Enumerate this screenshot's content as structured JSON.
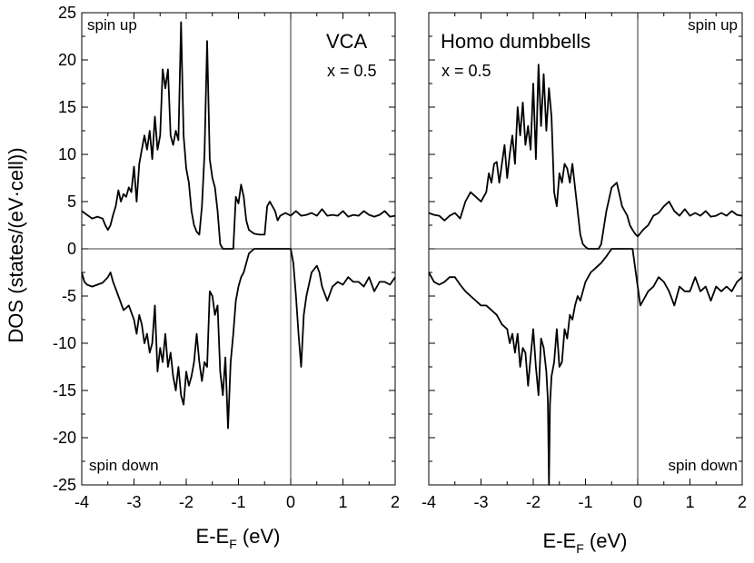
{
  "chart_data": [
    {
      "type": "line",
      "title": "VCA",
      "annotation": "x = 0.5",
      "spin_up_label": "spin up",
      "spin_down_label": "spin down",
      "xlabel": "E-E_F (eV)",
      "xlabel_main": "E-E",
      "xlabel_sub": "F",
      "xlabel_unit": " (eV)",
      "ylabel": "DOS (states/(eV·cell))",
      "xlim": [
        -4,
        2
      ],
      "ylim": [
        -25,
        25
      ],
      "xticks": [
        "-4",
        "-3",
        "-2",
        "-1",
        "0",
        "1",
        "2"
      ],
      "yticks": [
        "25",
        "20",
        "15",
        "10",
        "5",
        "0",
        "-5",
        "-10",
        "-15",
        "-20",
        "-25"
      ],
      "series": [
        {
          "x": [
            -4.0,
            -3.9,
            -3.8,
            -3.7,
            -3.6,
            -3.55,
            -3.5,
            -3.45,
            -3.4,
            -3.35,
            -3.3,
            -3.25,
            -3.2,
            -3.15,
            -3.1,
            -3.05,
            -3.0,
            -2.95,
            -2.9,
            -2.85,
            -2.8,
            -2.75,
            -2.7,
            -2.65,
            -2.6,
            -2.55,
            -2.5,
            -2.45,
            -2.4,
            -2.35,
            -2.3,
            -2.25,
            -2.2,
            -2.15,
            -2.1,
            -2.05,
            -2.0,
            -1.95,
            -1.9,
            -1.85,
            -1.8,
            -1.75,
            -1.7,
            -1.65,
            -1.6,
            -1.55,
            -1.5,
            -1.45,
            -1.4,
            -1.35,
            -1.3,
            -1.25,
            -1.2,
            -1.15,
            -1.1,
            -1.05,
            -1.0,
            -0.95,
            -0.9,
            -0.85,
            -0.8,
            -0.7,
            -0.6,
            -0.55,
            -0.5,
            -0.45,
            -0.4,
            -0.35,
            -0.3,
            -0.25,
            -0.2,
            -0.1,
            0.0,
            0.1,
            0.2,
            0.3,
            0.4,
            0.5,
            0.6,
            0.7,
            0.8,
            0.9,
            1.0,
            1.1,
            1.2,
            1.3,
            1.4,
            1.5,
            1.6,
            1.7,
            1.8,
            1.9,
            2.0
          ],
          "y": [
            4.0,
            3.6,
            3.2,
            3.4,
            3.2,
            2.5,
            2.0,
            2.5,
            3.6,
            4.5,
            6.2,
            5.0,
            5.8,
            5.5,
            6.5,
            6.0,
            8.7,
            5.0,
            9.0,
            10.5,
            12.0,
            10.5,
            12.5,
            9.5,
            14.0,
            10.5,
            12.0,
            19.0,
            17.0,
            19.0,
            12.0,
            11.0,
            12.5,
            11.5,
            24.0,
            12.0,
            8.5,
            7.0,
            4.0,
            2.5,
            1.8,
            1.5,
            4.5,
            10.0,
            22.0,
            9.5,
            7.5,
            6.5,
            4.0,
            0.5,
            0.0,
            0.0,
            0.0,
            0.0,
            0.0,
            5.5,
            4.8,
            6.8,
            5.5,
            3.0,
            2.0,
            1.6,
            1.5,
            1.5,
            1.5,
            4.5,
            5.0,
            4.5,
            4.0,
            3.0,
            3.5,
            3.8,
            3.5,
            4.0,
            3.5,
            3.6,
            3.8,
            3.5,
            4.2,
            3.5,
            3.6,
            3.5,
            4.0,
            3.4,
            3.6,
            3.5,
            4.0,
            3.6,
            3.4,
            3.6,
            4.0,
            3.4,
            3.5
          ]
        },
        {
          "x": [
            -4.0,
            -3.95,
            -3.9,
            -3.8,
            -3.7,
            -3.6,
            -3.5,
            -3.45,
            -3.4,
            -3.3,
            -3.2,
            -3.1,
            -3.0,
            -2.95,
            -2.9,
            -2.85,
            -2.8,
            -2.75,
            -2.7,
            -2.65,
            -2.6,
            -2.55,
            -2.5,
            -2.45,
            -2.4,
            -2.35,
            -2.3,
            -2.25,
            -2.2,
            -2.15,
            -2.1,
            -2.05,
            -2.0,
            -1.95,
            -1.9,
            -1.85,
            -1.8,
            -1.75,
            -1.7,
            -1.65,
            -1.6,
            -1.55,
            -1.5,
            -1.45,
            -1.4,
            -1.35,
            -1.3,
            -1.25,
            -1.2,
            -1.15,
            -1.1,
            -1.05,
            -1.0,
            -0.95,
            -0.9,
            -0.85,
            -0.8,
            -0.7,
            -0.6,
            -0.5,
            -0.4,
            -0.3,
            -0.2,
            -0.1,
            0.0,
            0.05,
            0.1,
            0.15,
            0.2,
            0.25,
            0.3,
            0.4,
            0.5,
            0.55,
            0.6,
            0.7,
            0.8,
            0.9,
            1.0,
            1.1,
            1.2,
            1.3,
            1.4,
            1.5,
            1.6,
            1.7,
            1.8,
            1.9,
            2.0
          ],
          "y": [
            -2.5,
            -3.5,
            -3.8,
            -4.0,
            -3.8,
            -3.6,
            -3.0,
            -2.5,
            -3.5,
            -5.0,
            -6.5,
            -6.0,
            -7.5,
            -9.0,
            -7.0,
            -8.0,
            -10.0,
            -9.0,
            -11.0,
            -10.0,
            -6.0,
            -13.0,
            -10.5,
            -12.0,
            -9.0,
            -12.5,
            -11.0,
            -13.5,
            -15.0,
            -12.5,
            -15.5,
            -16.5,
            -13.0,
            -14.5,
            -13.5,
            -12.0,
            -9.0,
            -12.0,
            -14.0,
            -12.0,
            -12.5,
            -4.5,
            -5.0,
            -7.0,
            -6.0,
            -13.0,
            -15.5,
            -11.5,
            -19.0,
            -12.0,
            -9.0,
            -5.5,
            -4.0,
            -3.0,
            -2.5,
            -1.5,
            -0.5,
            0.0,
            0.0,
            0.0,
            0.0,
            0.0,
            0.0,
            0.0,
            0.0,
            -1.5,
            -5.0,
            -9.0,
            -12.5,
            -7.0,
            -5.0,
            -2.5,
            -1.8,
            -2.5,
            -4.0,
            -5.5,
            -4.0,
            -3.5,
            -3.8,
            -3.0,
            -3.5,
            -3.5,
            -4.0,
            -3.0,
            -4.5,
            -3.5,
            -3.5,
            -3.8,
            -3.0
          ]
        }
      ]
    },
    {
      "type": "line",
      "title": "Homo dumbbells",
      "annotation": "x = 0.5",
      "spin_up_label": "spin up",
      "spin_down_label": "spin down",
      "xlabel": "E-E_F (eV)",
      "xlabel_main": "E-E",
      "xlabel_sub": "F",
      "xlabel_unit": " (eV)",
      "xlim": [
        -4,
        2
      ],
      "ylim": [
        -25,
        25
      ],
      "xticks": [
        "-4",
        "-3",
        "-2",
        "-1",
        "0",
        "1",
        "2"
      ],
      "series": [
        {
          "x": [
            -4.0,
            -3.9,
            -3.8,
            -3.7,
            -3.6,
            -3.5,
            -3.4,
            -3.3,
            -3.2,
            -3.1,
            -3.0,
            -2.9,
            -2.85,
            -2.8,
            -2.75,
            -2.7,
            -2.65,
            -2.6,
            -2.55,
            -2.5,
            -2.45,
            -2.4,
            -2.35,
            -2.3,
            -2.25,
            -2.2,
            -2.15,
            -2.1,
            -2.05,
            -2.0,
            -1.95,
            -1.9,
            -1.85,
            -1.8,
            -1.75,
            -1.7,
            -1.65,
            -1.6,
            -1.55,
            -1.5,
            -1.45,
            -1.4,
            -1.35,
            -1.3,
            -1.25,
            -1.2,
            -1.15,
            -1.1,
            -1.05,
            -1.0,
            -0.95,
            -0.9,
            -0.85,
            -0.8,
            -0.75,
            -0.7,
            -0.6,
            -0.5,
            -0.4,
            -0.3,
            -0.2,
            -0.15,
            -0.1,
            -0.05,
            0.0,
            0.1,
            0.2,
            0.3,
            0.4,
            0.5,
            0.6,
            0.7,
            0.8,
            0.9,
            1.0,
            1.1,
            1.2,
            1.3,
            1.4,
            1.5,
            1.6,
            1.7,
            1.8,
            1.9,
            2.0
          ],
          "y": [
            3.8,
            3.6,
            3.5,
            3.0,
            3.5,
            3.8,
            3.2,
            5.0,
            6.0,
            5.5,
            5.0,
            6.0,
            8.0,
            7.0,
            9.0,
            9.2,
            7.0,
            9.0,
            11.0,
            7.5,
            10.0,
            12.0,
            9.0,
            15.0,
            12.0,
            15.5,
            11.0,
            13.0,
            10.5,
            17.5,
            9.5,
            19.5,
            13.0,
            18.5,
            12.5,
            17.0,
            14.0,
            6.0,
            4.5,
            8.0,
            7.0,
            9.0,
            8.5,
            7.0,
            9.0,
            6.5,
            4.0,
            1.5,
            0.5,
            0.2,
            0.0,
            0.0,
            0.0,
            0.0,
            0.0,
            0.5,
            4.0,
            6.5,
            7.0,
            4.5,
            3.5,
            2.5,
            2.0,
            1.6,
            1.3,
            2.0,
            2.5,
            3.5,
            3.8,
            4.5,
            5.0,
            4.0,
            3.5,
            4.2,
            3.5,
            3.8,
            3.5,
            4.0,
            3.4,
            3.5,
            3.8,
            3.5,
            4.0,
            3.6,
            3.5
          ]
        },
        {
          "x": [
            -4.0,
            -3.9,
            -3.8,
            -3.7,
            -3.6,
            -3.5,
            -3.4,
            -3.3,
            -3.2,
            -3.1,
            -3.0,
            -2.9,
            -2.8,
            -2.7,
            -2.6,
            -2.5,
            -2.45,
            -2.4,
            -2.35,
            -2.3,
            -2.25,
            -2.2,
            -2.15,
            -2.1,
            -2.05,
            -2.0,
            -1.95,
            -1.9,
            -1.85,
            -1.8,
            -1.75,
            -1.72,
            -1.7,
            -1.68,
            -1.65,
            -1.6,
            -1.55,
            -1.5,
            -1.45,
            -1.4,
            -1.35,
            -1.3,
            -1.25,
            -1.2,
            -1.15,
            -1.1,
            -1.05,
            -1.0,
            -0.9,
            -0.8,
            -0.7,
            -0.6,
            -0.5,
            -0.4,
            -0.3,
            -0.2,
            -0.1,
            0.0,
            0.05,
            0.1,
            0.2,
            0.3,
            0.4,
            0.5,
            0.6,
            0.7,
            0.8,
            0.9,
            1.0,
            1.1,
            1.2,
            1.3,
            1.4,
            1.5,
            1.6,
            1.7,
            1.8,
            1.9,
            2.0
          ],
          "y": [
            -2.5,
            -3.5,
            -3.8,
            -3.5,
            -3.0,
            -3.0,
            -3.8,
            -4.5,
            -5.0,
            -5.5,
            -6.0,
            -6.0,
            -6.5,
            -7.0,
            -8.0,
            -8.5,
            -10.0,
            -9.0,
            -11.0,
            -9.0,
            -12.5,
            -10.5,
            -11.0,
            -14.5,
            -11.5,
            -8.5,
            -12.5,
            -15.5,
            -9.5,
            -10.5,
            -13.0,
            -16.0,
            -25.0,
            -16.5,
            -13.5,
            -12.0,
            -8.5,
            -12.5,
            -12.0,
            -8.5,
            -9.5,
            -7.0,
            -7.5,
            -6.0,
            -5.0,
            -5.5,
            -4.5,
            -3.5,
            -2.5,
            -2.0,
            -1.5,
            -0.8,
            0.0,
            0.0,
            0.0,
            0.0,
            0.0,
            -4.0,
            -6.0,
            -5.5,
            -4.5,
            -4.0,
            -3.0,
            -3.5,
            -4.5,
            -6.0,
            -4.0,
            -4.5,
            -4.5,
            -3.0,
            -4.5,
            -4.0,
            -5.5,
            -4.0,
            -4.5,
            -4.0,
            -4.5,
            -3.5,
            -3.0
          ]
        }
      ]
    }
  ]
}
